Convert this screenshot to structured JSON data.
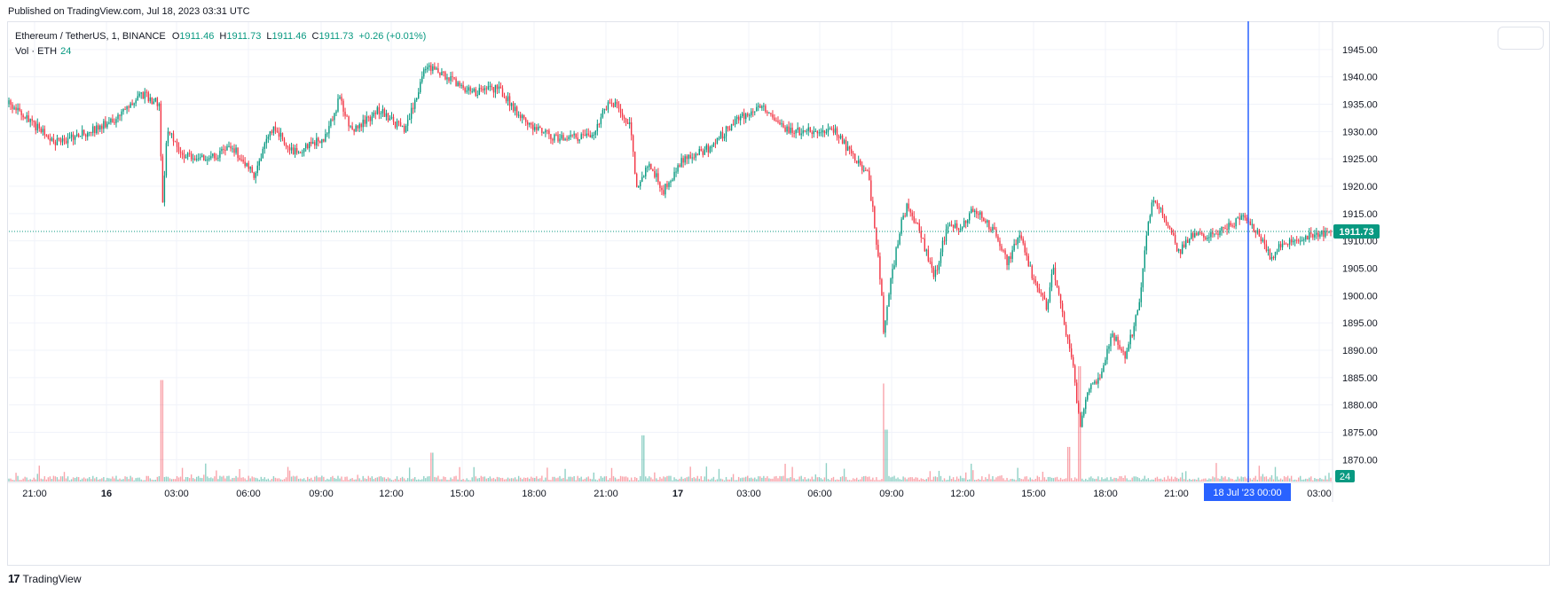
{
  "published": "Published on TradingView.com, Jul 18, 2023 03:31 UTC",
  "footer_brand": "TradingView",
  "footer_logo_glyph": "17",
  "colors": {
    "up": "#089981",
    "down": "#f23645",
    "grid": "#f0f3fa",
    "crosshair": "#2962ff"
  },
  "legend": {
    "symbol": "Ethereum / TetherUS, 1, BINANCE",
    "o_label": "O",
    "o_value": "1911.46",
    "h_label": "H",
    "h_value": "1911.73",
    "l_label": "L",
    "l_value": "1911.46",
    "c_label": "C",
    "c_value": "1911.73",
    "change": "+0.26 (+0.01%)",
    "vol_label": "Vol · ETH",
    "vol_value": "24"
  },
  "chart_data": {
    "type": "candlestick",
    "title": "Ethereum / TetherUS, 1, BINANCE",
    "interval": "1 minute",
    "ylim": [
      1866,
      1950
    ],
    "y_ticks": [
      "1945.00",
      "1940.00",
      "1935.00",
      "1930.00",
      "1925.00",
      "1920.00",
      "1915.00",
      "1910.00",
      "1905.00",
      "1900.00",
      "1895.00",
      "1890.00",
      "1885.00",
      "1880.00",
      "1875.00",
      "1870.00"
    ],
    "x_ticks": [
      "21:00",
      "16",
      "03:00",
      "06:00",
      "09:00",
      "12:00",
      "15:00",
      "18:00",
      "21:00",
      "17",
      "03:00",
      "06:00",
      "09:00",
      "12:00",
      "15:00",
      "18:00",
      "21:00",
      "03:00"
    ],
    "bold_x_ticks": [
      "16",
      "17"
    ],
    "last_price": "1911.73",
    "last_price_value": 1911.73,
    "last_volume": "24",
    "crosshair_label": "18 Jul '23   00:00",
    "price_path": [
      {
        "t": 0.0,
        "p": 1935
      },
      {
        "t": 0.02,
        "p": 1931
      },
      {
        "t": 0.035,
        "p": 1928
      },
      {
        "t": 0.05,
        "p": 1929
      },
      {
        "t": 0.08,
        "p": 1932
      },
      {
        "t": 0.1,
        "p": 1937
      },
      {
        "t": 0.114,
        "p": 1935
      },
      {
        "t": 0.116,
        "p": 1916
      },
      {
        "t": 0.12,
        "p": 1931
      },
      {
        "t": 0.13,
        "p": 1926
      },
      {
        "t": 0.15,
        "p": 1925
      },
      {
        "t": 0.17,
        "p": 1927
      },
      {
        "t": 0.185,
        "p": 1922
      },
      {
        "t": 0.2,
        "p": 1931
      },
      {
        "t": 0.215,
        "p": 1926
      },
      {
        "t": 0.24,
        "p": 1929
      },
      {
        "t": 0.25,
        "p": 1936
      },
      {
        "t": 0.26,
        "p": 1930
      },
      {
        "t": 0.28,
        "p": 1934
      },
      {
        "t": 0.3,
        "p": 1930
      },
      {
        "t": 0.315,
        "p": 1942
      },
      {
        "t": 0.33,
        "p": 1940
      },
      {
        "t": 0.35,
        "p": 1937
      },
      {
        "t": 0.37,
        "p": 1938
      },
      {
        "t": 0.39,
        "p": 1932
      },
      {
        "t": 0.41,
        "p": 1929
      },
      {
        "t": 0.44,
        "p": 1929
      },
      {
        "t": 0.455,
        "p": 1936
      },
      {
        "t": 0.47,
        "p": 1931
      },
      {
        "t": 0.475,
        "p": 1920
      },
      {
        "t": 0.485,
        "p": 1924
      },
      {
        "t": 0.495,
        "p": 1919
      },
      {
        "t": 0.51,
        "p": 1925
      },
      {
        "t": 0.53,
        "p": 1927
      },
      {
        "t": 0.55,
        "p": 1932
      },
      {
        "t": 0.57,
        "p": 1935
      },
      {
        "t": 0.59,
        "p": 1930
      },
      {
        "t": 0.61,
        "p": 1930
      },
      {
        "t": 0.625,
        "p": 1930
      },
      {
        "t": 0.64,
        "p": 1925
      },
      {
        "t": 0.65,
        "p": 1922
      },
      {
        "t": 0.655,
        "p": 1913
      },
      {
        "t": 0.66,
        "p": 1901
      },
      {
        "t": 0.662,
        "p": 1892
      },
      {
        "t": 0.665,
        "p": 1900
      },
      {
        "t": 0.675,
        "p": 1913
      },
      {
        "t": 0.68,
        "p": 1917
      },
      {
        "t": 0.69,
        "p": 1911
      },
      {
        "t": 0.7,
        "p": 1903
      },
      {
        "t": 0.71,
        "p": 1913
      },
      {
        "t": 0.72,
        "p": 1912
      },
      {
        "t": 0.73,
        "p": 1916
      },
      {
        "t": 0.745,
        "p": 1912
      },
      {
        "t": 0.755,
        "p": 1906
      },
      {
        "t": 0.765,
        "p": 1911
      },
      {
        "t": 0.775,
        "p": 1903
      },
      {
        "t": 0.785,
        "p": 1898
      },
      {
        "t": 0.79,
        "p": 1905
      },
      {
        "t": 0.8,
        "p": 1893
      },
      {
        "t": 0.805,
        "p": 1888
      },
      {
        "t": 0.81,
        "p": 1876
      },
      {
        "t": 0.815,
        "p": 1882
      },
      {
        "t": 0.825,
        "p": 1885
      },
      {
        "t": 0.835,
        "p": 1893
      },
      {
        "t": 0.845,
        "p": 1889
      },
      {
        "t": 0.855,
        "p": 1898
      },
      {
        "t": 0.86,
        "p": 1910
      },
      {
        "t": 0.865,
        "p": 1918
      },
      {
        "t": 0.875,
        "p": 1914
      },
      {
        "t": 0.885,
        "p": 1908
      },
      {
        "t": 0.895,
        "p": 1911
      },
      {
        "t": 0.91,
        "p": 1911
      },
      {
        "t": 0.925,
        "p": 1913
      },
      {
        "t": 0.935,
        "p": 1915
      },
      {
        "t": 0.945,
        "p": 1911
      },
      {
        "t": 0.955,
        "p": 1907
      },
      {
        "t": 0.965,
        "p": 1910
      },
      {
        "t": 1.0,
        "p": 1911.73
      }
    ],
    "volume_spikes": [
      {
        "t": 0.116,
        "v": 88
      },
      {
        "t": 0.48,
        "v": 40
      },
      {
        "t": 0.662,
        "v": 85
      },
      {
        "t": 0.664,
        "v": 45
      },
      {
        "t": 0.81,
        "v": 100
      },
      {
        "t": 0.802,
        "v": 30
      },
      {
        "t": 0.32,
        "v": 25
      }
    ]
  }
}
